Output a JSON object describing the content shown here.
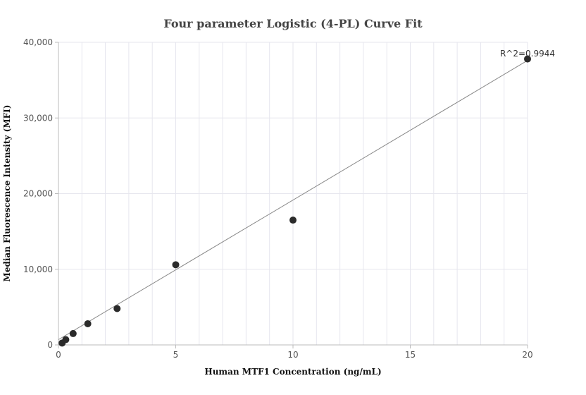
{
  "chart_data": {
    "type": "scatter",
    "title": "Four parameter Logistic (4-PL) Curve Fit",
    "xlabel": "Human MTF1 Concentration (ng/mL)",
    "ylabel": "Median Fluorescence Intensity (MFI)",
    "xlim": [
      0,
      20
    ],
    "ylim": [
      0,
      40000
    ],
    "x_ticks": [
      0,
      5,
      10,
      15,
      20
    ],
    "x_tick_labels": [
      "0",
      "5",
      "10",
      "15",
      "20"
    ],
    "y_ticks": [
      0,
      10000,
      20000,
      30000,
      40000
    ],
    "y_tick_labels": [
      "0",
      "10,000",
      "20,000",
      "30,000",
      "40,000"
    ],
    "grid": true,
    "points": [
      {
        "x": 0.156,
        "y": 250
      },
      {
        "x": 0.3125,
        "y": 700
      },
      {
        "x": 0.625,
        "y": 1500
      },
      {
        "x": 1.25,
        "y": 2800
      },
      {
        "x": 2.5,
        "y": 4800
      },
      {
        "x": 5,
        "y": 10600
      },
      {
        "x": 10,
        "y": 16500
      },
      {
        "x": 20,
        "y": 37800
      }
    ],
    "fit_line": {
      "x": [
        0,
        20
      ],
      "y": [
        700,
        37600
      ]
    },
    "annotation": "R^2=0.9944",
    "colors": {
      "points": "#2b2b2b",
      "fit": "#888888",
      "grid": "#e6e6ee",
      "axis": "#bbbbbb"
    }
  }
}
